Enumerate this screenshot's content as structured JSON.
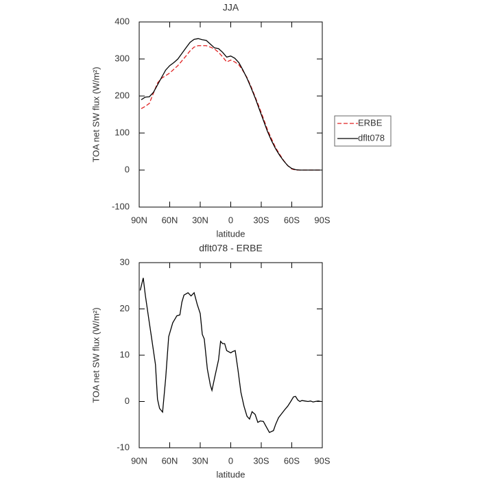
{
  "chart_data": [
    {
      "type": "line",
      "title": "JJA",
      "xlabel": "latitude",
      "ylabel": "TOA net SW flux (W/m²)",
      "x": [
        88,
        84,
        80,
        76,
        72,
        68,
        64,
        60,
        56,
        52,
        48,
        44,
        40,
        36,
        32,
        28,
        24,
        20,
        16,
        12,
        8,
        4,
        0,
        -4,
        -8,
        -12,
        -16,
        -20,
        -24,
        -28,
        -32,
        -36,
        -40,
        -44,
        -48,
        -52,
        -56,
        -60,
        -64,
        -68,
        -72,
        -76,
        -80,
        -84,
        -88
      ],
      "series": [
        {
          "name": "ERBE",
          "color": "#e02020",
          "linestyle": "dashed",
          "values": [
            166,
            172,
            180,
            208,
            235,
            248,
            255,
            262,
            272,
            282,
            295,
            308,
            322,
            332,
            336,
            336,
            336,
            332,
            327,
            318,
            306,
            292,
            297,
            292,
            284,
            268,
            250,
            225,
            198,
            170,
            140,
            110,
            85,
            61,
            43,
            26,
            12,
            3,
            0,
            0,
            0,
            0,
            0,
            0,
            0
          ]
        },
        {
          "name": "dflt078",
          "color": "#000000",
          "linestyle": "solid",
          "values": [
            190,
            197,
            198,
            210,
            230,
            250,
            270,
            282,
            290,
            300,
            315,
            330,
            345,
            353,
            355,
            352,
            350,
            340,
            330,
            328,
            318,
            305,
            308,
            302,
            290,
            270,
            248,
            222,
            195,
            165,
            135,
            105,
            80,
            58,
            40,
            25,
            12,
            4,
            1,
            0,
            0,
            0,
            0,
            0,
            0
          ]
        }
      ],
      "xlim": [
        90,
        -90
      ],
      "xticks": [
        {
          "value": 90,
          "label": "90N"
        },
        {
          "value": 60,
          "label": "60N"
        },
        {
          "value": 30,
          "label": "30N"
        },
        0,
        {
          "value": -30,
          "label": "30S"
        },
        {
          "value": -60,
          "label": "60S"
        },
        {
          "value": -90,
          "label": "90S"
        }
      ],
      "ylim": [
        -100,
        400
      ],
      "yticks": [
        -100,
        0,
        100,
        200,
        300,
        400
      ],
      "legend": "right"
    },
    {
      "type": "line",
      "title": "dflt078 - ERBE",
      "xlabel": "latitude",
      "ylabel": "TOA net SW flux (W/m²)",
      "x": [
        89,
        86,
        84,
        80,
        78,
        74,
        72,
        70,
        67,
        64,
        61,
        57,
        53,
        50,
        48,
        46,
        42,
        39,
        36,
        33,
        30,
        28,
        26,
        23,
        20,
        18.5,
        16,
        12,
        10,
        8,
        6,
        4,
        0,
        -2,
        -4.4,
        -7,
        -10,
        -13,
        -16,
        -18.5,
        -21,
        -24,
        -26.6,
        -29,
        -32,
        -35,
        -38,
        -42,
        -44,
        -47,
        -49.5,
        -53,
        -56,
        -59,
        -61.7,
        -63.7,
        -66,
        -68,
        -70,
        -73,
        -76,
        -78.5,
        -81,
        -83,
        -86,
        -88.6
      ],
      "values": [
        24,
        26.7,
        23,
        17,
        14,
        8,
        0.5,
        -1.5,
        -2.3,
        5,
        14,
        17,
        18.5,
        18.7,
        21.5,
        23,
        23.5,
        22.8,
        23.5,
        21,
        19,
        14.5,
        13.5,
        7,
        3.5,
        2.4,
        5,
        9,
        13,
        12.5,
        12.5,
        11,
        10.5,
        10.8,
        11,
        7,
        2,
        -1,
        -3.2,
        -3.8,
        -2.2,
        -2.8,
        -4.5,
        -4.2,
        -4.3,
        -5.5,
        -6.7,
        -6.3,
        -5,
        -3.5,
        -2.8,
        -1.8,
        -1,
        0,
        1,
        1.1,
        0.3,
        0,
        0.2,
        0.1,
        0,
        0.1,
        -0.1,
        0,
        0.1,
        0
      ],
      "color": "#000000",
      "xlim": [
        90,
        -90
      ],
      "xticks": [
        {
          "value": 90,
          "label": "90N"
        },
        {
          "value": 60,
          "label": "60N"
        },
        {
          "value": 30,
          "label": "30N"
        },
        0,
        {
          "value": -30,
          "label": "30S"
        },
        {
          "value": -60,
          "label": "60S"
        },
        {
          "value": -90,
          "label": "90S"
        }
      ],
      "ylim": [
        -10,
        30
      ],
      "yticks": [
        -10,
        0,
        10,
        20,
        30
      ]
    }
  ]
}
